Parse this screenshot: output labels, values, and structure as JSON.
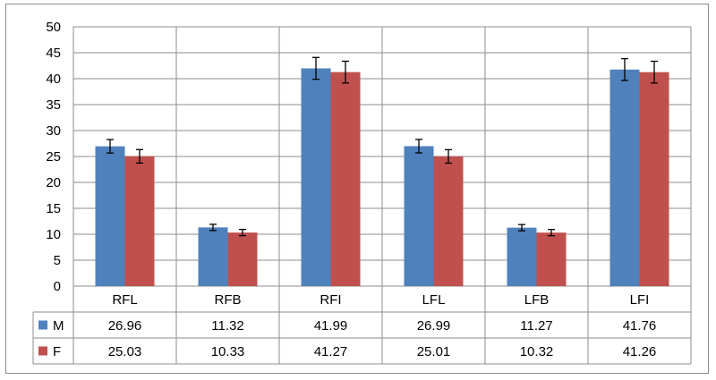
{
  "chart_data": {
    "type": "bar",
    "title": "",
    "xlabel": "",
    "ylabel": "",
    "ylim": [
      0,
      50
    ],
    "yticks": [
      "0",
      "5",
      "10",
      "15",
      "20",
      "25",
      "30",
      "35",
      "40",
      "45",
      "50"
    ],
    "categories": [
      "RFL",
      "RFB",
      "RFI",
      "LFL",
      "LFB",
      "LFI"
    ],
    "series": [
      {
        "name": "M",
        "color": "#4f81bd",
        "values": [
          26.96,
          11.32,
          41.99,
          26.99,
          11.27,
          41.76
        ],
        "labels": [
          "26.96",
          "11.32",
          "41.99",
          "26.99",
          "11.27",
          "41.76"
        ],
        "errors": [
          1.3,
          0.6,
          2.1,
          1.3,
          0.6,
          2.1
        ]
      },
      {
        "name": "F",
        "color": "#c0504d",
        "values": [
          25.03,
          10.33,
          41.27,
          25.01,
          10.32,
          41.26
        ],
        "labels": [
          "25.03",
          "10.33",
          "41.27",
          "25.01",
          "10.32",
          "41.26"
        ],
        "errors": [
          1.3,
          0.6,
          2.1,
          1.3,
          0.6,
          2.1
        ]
      }
    ],
    "grid": true,
    "legend": "data-table"
  }
}
